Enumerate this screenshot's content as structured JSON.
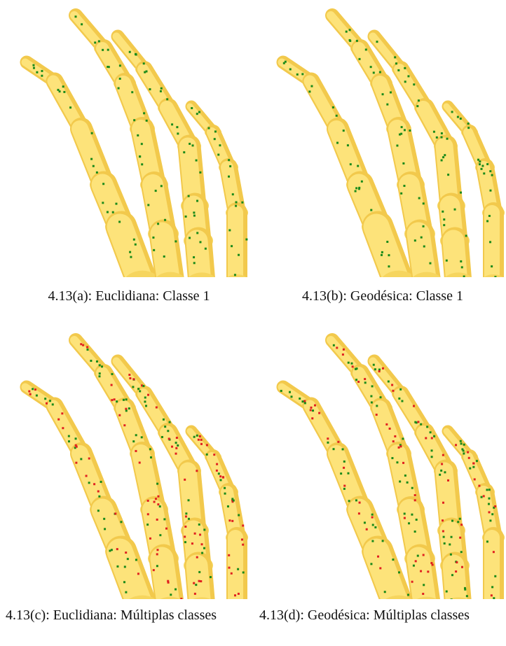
{
  "figure": {
    "panels": [
      {
        "caption": "4.13(a): Euclidiana: Classe 1"
      },
      {
        "caption": "4.13(b): Geodésica: Classe 1"
      },
      {
        "caption": "4.13(c): Euclidiana: Múltiplas classes"
      },
      {
        "caption": "4.13(d): Geodésica: Múltiplas classes"
      }
    ]
  }
}
